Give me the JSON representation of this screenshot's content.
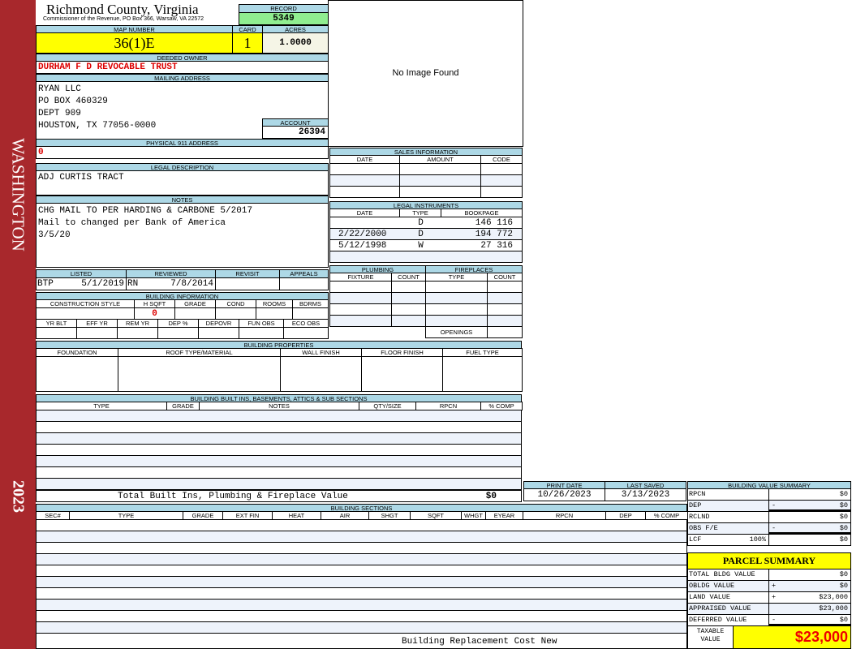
{
  "side": {
    "top": "WASHINGTON",
    "bottom": "2023",
    "color": "#a8282c"
  },
  "header": {
    "title": "Richmond County, Virginia",
    "subtitle": "Commissioner of the Revenue, PO Box 366, Warsaw, VA 22572"
  },
  "record": {
    "label": "RECORD",
    "value": "5349"
  },
  "map": {
    "label": "MAP NUMBER",
    "value": "36(1)E"
  },
  "card": {
    "label": "CARD",
    "value": "1"
  },
  "acres": {
    "label": "ACRES",
    "value": "1.0000"
  },
  "owner": {
    "label": "DEEDED OWNER",
    "value": "DURHAM F D REVOCABLE TRUST"
  },
  "mailing": {
    "label": "MAILING ADDRESS",
    "lines": [
      "RYAN LLC",
      "PO BOX 460329",
      "DEPT 909",
      "HOUSTON, TX 77056-0000"
    ]
  },
  "account": {
    "label": "ACCOUNT",
    "value": "26394"
  },
  "physical": {
    "label": "PHYSICAL 911 ADDRESS",
    "value": "0"
  },
  "image": {
    "text": "No Image Found"
  },
  "legal": {
    "label": "LEGAL DESCRIPTION",
    "value": "ADJ CURTIS TRACT"
  },
  "notes": {
    "label": "NOTES",
    "lines": [
      "CHG MAIL TO PER HARDING & CARBONE 5/2017",
      "Mail to changed per Bank of America",
      "3/5/20"
    ]
  },
  "listed": {
    "labels": [
      "LISTED",
      "REVIEWED",
      "REVISIT",
      "APPEALS"
    ],
    "listed_by": "BTP",
    "listed_date": "5/1/2019",
    "reviewed_by": "RN",
    "reviewed_date": "7/8/2014"
  },
  "building_info": {
    "label": "BUILDING INFORMATION",
    "cols1": [
      "CONSTRUCTION STYLE",
      "H SQFT",
      "GRADE",
      "COND",
      "ROOMS",
      "BDRMS"
    ],
    "hsqft": "0",
    "cols2": [
      "YR BLT",
      "EFF YR",
      "REM YR",
      "DEP %",
      "DEPOVR",
      "FUN OBS",
      "ECO OBS"
    ]
  },
  "sales": {
    "label": "SALES INFORMATION",
    "cols": [
      "DATE",
      "AMOUNT",
      "CODE"
    ]
  },
  "instruments": {
    "label": "LEGAL INSTRUMENTS",
    "cols": [
      "DATE",
      "TYPE",
      "BOOKPAGE"
    ],
    "rows": [
      [
        "",
        "D",
        "146 116"
      ],
      [
        "2/22/2000",
        "D",
        "194 772"
      ],
      [
        "5/12/1998",
        "W",
        "27 316"
      ]
    ]
  },
  "plumbing": {
    "label": "PLUMBING",
    "cols": [
      "FIXTURE",
      "COUNT"
    ]
  },
  "fireplaces": {
    "label": "FIREPLACES",
    "cols": [
      "TYPE",
      "COUNT"
    ],
    "openings": "OPENINGS"
  },
  "properties": {
    "label": "BUILDING PROPERTIES",
    "cols": [
      "FOUNDATION",
      "ROOF TYPE/MATERIAL",
      "WALL FINISH",
      "FLOOR FINISH",
      "FUEL TYPE"
    ]
  },
  "builtins": {
    "label": "BUILDING BUILT INS, BASEMENTS, ATTICS & SUB SECTIONS",
    "cols": [
      "TYPE",
      "GRADE",
      "NOTES",
      "QTY/SIZE",
      "RPCN",
      "% COMP"
    ],
    "total_label": "Total Built Ins, Plumbing & Fireplace Value",
    "total": "$0"
  },
  "dates": {
    "print_label": "PRINT DATE",
    "print": "10/26/2023",
    "saved_label": "LAST SAVED",
    "saved": "3/13/2023"
  },
  "sections": {
    "label": "BUILDING SECTIONS",
    "cols": [
      "SEC#",
      "TYPE",
      "GRADE",
      "EXT FIN",
      "HEAT",
      "AIR",
      "SHGT",
      "SQFT",
      "WHGT",
      "EYEAR",
      "RPCN",
      "DEP",
      "% COMP"
    ],
    "footer": "Building Replacement Cost New"
  },
  "bvs": {
    "label": "BUILDING VALUE SUMMARY",
    "rows": [
      {
        "label": "RPCN",
        "sign": "",
        "value": "$0"
      },
      {
        "label": "DEP",
        "sign": "-",
        "value": "$0"
      },
      {
        "label": "RCLND",
        "sign": "",
        "value": "$0"
      },
      {
        "label": "OBS F/E",
        "sign": "-",
        "value": "$0"
      },
      {
        "label": "LCF",
        "pct": "100%",
        "sign": "",
        "value": "$0"
      }
    ]
  },
  "parcel": {
    "label": "PARCEL SUMMARY",
    "rows": [
      {
        "label": "TOTAL BLDG VALUE",
        "sign": "",
        "value": "$0"
      },
      {
        "label": "OBLDG VALUE",
        "sign": "+",
        "value": "$0"
      },
      {
        "label": "LAND VALUE",
        "sign": "+",
        "value": "$23,000"
      },
      {
        "label": "APPRAISED VALUE",
        "sign": "",
        "value": "$23,000"
      },
      {
        "label": "DEFERRED VALUE",
        "sign": "-",
        "value": "$0"
      }
    ],
    "taxable_label": "TAXABLE VALUE",
    "taxable": "$23,000"
  }
}
